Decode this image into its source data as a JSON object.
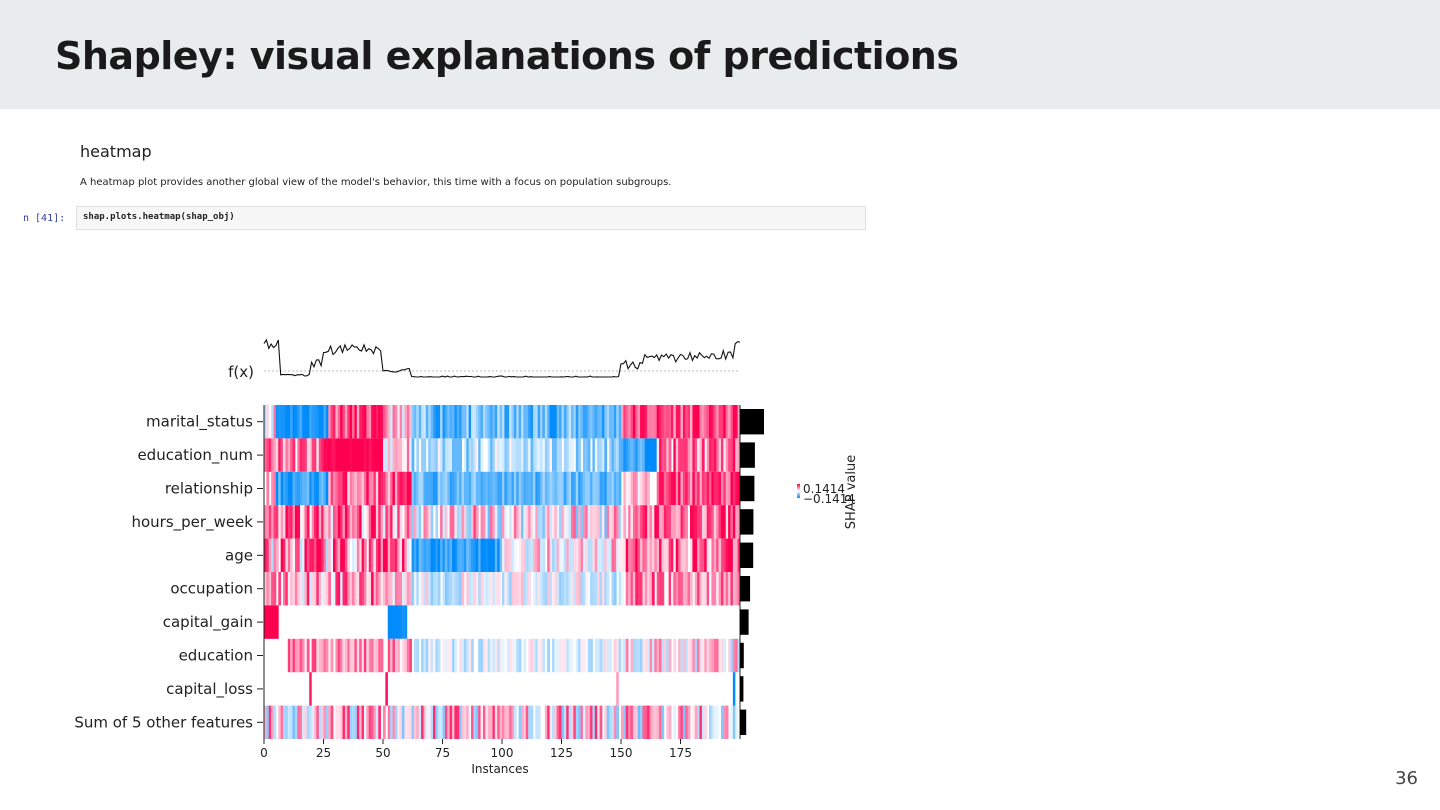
{
  "slide": {
    "title": "Shapley: visual explanations of predictions",
    "page_number": "36"
  },
  "notebook": {
    "heading": "heatmap",
    "description": "A heatmap plot provides another global view of the model's behavior, this time with a focus on population subgroups.",
    "prompt": "n [41]:",
    "code": "shap.plots.heatmap(shap_obj)"
  },
  "colors": {
    "positive": "#ff0051",
    "negative": "#008bfb",
    "header_bg": "#e8ecec"
  },
  "chart_data": {
    "type": "heatmap",
    "fx_label": "f(x)",
    "features": [
      "marital_status",
      "education_num",
      "relationship",
      "hours_per_week",
      "age",
      "occupation",
      "capital_gain",
      "education",
      "capital_loss",
      "Sum of 5 other features"
    ],
    "importance": [
      1.0,
      0.62,
      0.6,
      0.56,
      0.55,
      0.42,
      0.36,
      0.16,
      0.14,
      0.26
    ],
    "xlabel": "Instances",
    "xticks": [
      0,
      25,
      50,
      75,
      100,
      125,
      150,
      175
    ],
    "xlim": [
      0,
      200
    ],
    "colorbar": {
      "label": "SHAP value",
      "max_label": "0.1414",
      "min_label": "−0.1414"
    }
  }
}
